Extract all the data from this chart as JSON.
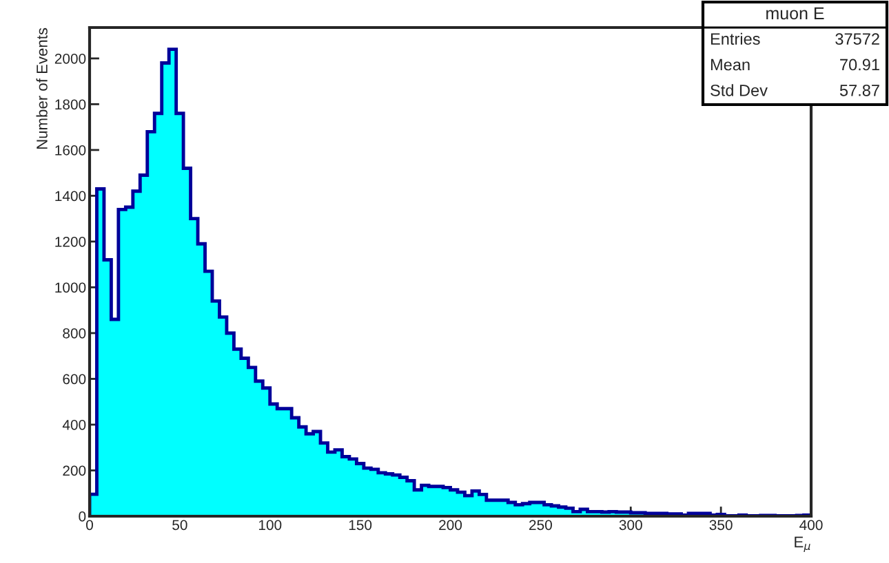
{
  "chart_data": {
    "type": "histogram",
    "title": "muon E",
    "xlabel": "E$_{μ}$",
    "ylabel": "Number of Events",
    "bins": [
      0,
      4,
      8,
      12,
      16,
      20,
      24,
      28,
      32,
      36,
      40,
      44,
      48,
      52,
      56,
      60,
      64,
      68,
      72,
      76,
      80,
      84,
      88,
      92,
      96,
      100,
      104,
      108,
      112,
      116,
      120,
      124,
      128,
      132,
      136,
      140,
      144,
      148,
      152,
      156,
      160,
      164,
      168,
      172,
      176,
      180,
      184,
      188,
      192,
      196,
      200,
      204,
      208,
      212,
      216,
      220,
      224,
      228,
      232,
      236,
      240,
      244,
      248,
      252,
      256,
      260,
      264,
      268,
      272,
      276,
      280,
      284,
      288,
      292,
      296,
      300,
      304,
      308,
      312,
      316,
      320,
      324,
      328,
      332,
      336,
      340,
      344,
      348,
      352,
      356,
      360,
      364,
      368,
      372,
      376,
      380,
      384,
      388,
      392,
      396,
      400
    ],
    "values": [
      96,
      1430,
      1120,
      860,
      1340,
      1350,
      1420,
      1490,
      1680,
      1760,
      1980,
      2040,
      1760,
      1520,
      1300,
      1190,
      1070,
      940,
      870,
      800,
      730,
      690,
      650,
      590,
      560,
      490,
      470,
      470,
      430,
      390,
      360,
      370,
      320,
      280,
      290,
      260,
      250,
      230,
      210,
      205,
      190,
      185,
      180,
      170,
      155,
      115,
      135,
      130,
      130,
      125,
      115,
      105,
      90,
      110,
      95,
      70,
      70,
      70,
      60,
      50,
      55,
      60,
      60,
      50,
      45,
      40,
      35,
      20,
      30,
      20,
      20,
      18,
      20,
      18,
      18,
      15,
      15,
      12,
      12,
      12,
      10,
      10,
      5,
      12,
      12,
      12,
      5,
      8,
      2,
      2,
      5,
      2,
      2,
      3,
      3,
      2,
      2,
      2,
      3,
      5
    ],
    "color": "#00ffff",
    "xlim": [
      0,
      400
    ],
    "xticks": [
      0,
      50,
      100,
      150,
      200,
      250,
      300,
      350,
      400
    ],
    "ylim": [
      0,
      2135
    ],
    "yticks": [
      0,
      200,
      400,
      600,
      800,
      1000,
      1200,
      1400,
      1600,
      1800,
      2000
    ],
    "grid": false,
    "annotations": [
      "Entries",
      "37572",
      "Mean",
      "70.91",
      "Std Dev",
      "57.87"
    ]
  }
}
